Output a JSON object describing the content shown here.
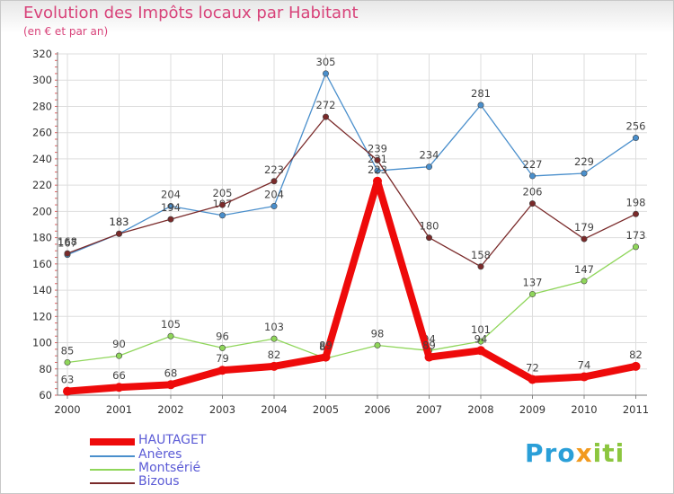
{
  "chart_data": {
    "type": "line",
    "title": "Evolution des Impôts locaux par Habitant",
    "subtitle": "(en € et par an)",
    "categories": [
      "2000",
      "2001",
      "2002",
      "2003",
      "2004",
      "2005",
      "2006",
      "2007",
      "2008",
      "2009",
      "2010",
      "2011"
    ],
    "ylim": [
      60,
      320
    ],
    "yticks": [
      60,
      80,
      100,
      120,
      140,
      160,
      180,
      200,
      220,
      240,
      260,
      280,
      300,
      320
    ],
    "grid": true,
    "legend_position": "bottom-left",
    "series": [
      {
        "name": "Anères",
        "color": "#4a8fcc",
        "values": [
          167,
          183,
          204,
          197,
          204,
          305,
          231,
          234,
          281,
          227,
          229,
          256
        ],
        "labels": [
          "167",
          "183",
          "204",
          "197",
          "204",
          "305",
          "231",
          "234",
          "281",
          "227",
          "229",
          "256"
        ]
      },
      {
        "name": "Montsérié",
        "color": "#8fd65a",
        "values": [
          85,
          90,
          105,
          96,
          103,
          88,
          98,
          94,
          101,
          137,
          147,
          173
        ],
        "labels": [
          "85",
          "90",
          "105",
          "96",
          "103",
          "88",
          "98",
          "94",
          "101",
          "137",
          "147",
          "173"
        ]
      },
      {
        "name": "Bizous",
        "color": "#7a2a2a",
        "values": [
          168,
          183,
          194,
          205,
          223,
          272,
          239,
          180,
          158,
          206,
          179,
          198
        ],
        "labels": [
          "168",
          "183",
          "194",
          "205",
          "223",
          "272",
          "239",
          "180",
          "158",
          "206",
          "179",
          "198"
        ]
      },
      {
        "name": "HAUTAGET",
        "color": "#ee0a0a",
        "values": [
          63,
          66,
          68,
          79,
          82,
          89,
          223,
          89,
          94,
          72,
          74,
          82
        ],
        "labels": [
          "63",
          "66",
          "68",
          "79",
          "82",
          "89",
          "223",
          "89",
          "94",
          "72",
          "74",
          "82"
        ]
      }
    ]
  },
  "legend": {
    "items": [
      {
        "label": "HAUTAGET",
        "color": "#ee0a0a"
      },
      {
        "label": "Anères",
        "color": "#4a8fcc"
      },
      {
        "label": "Montsérié",
        "color": "#8fd65a"
      },
      {
        "label": "Bizous",
        "color": "#7a2a2a"
      }
    ]
  },
  "logo": {
    "text_p": "Pro",
    "text_x": "x",
    "text_i": "iti"
  }
}
